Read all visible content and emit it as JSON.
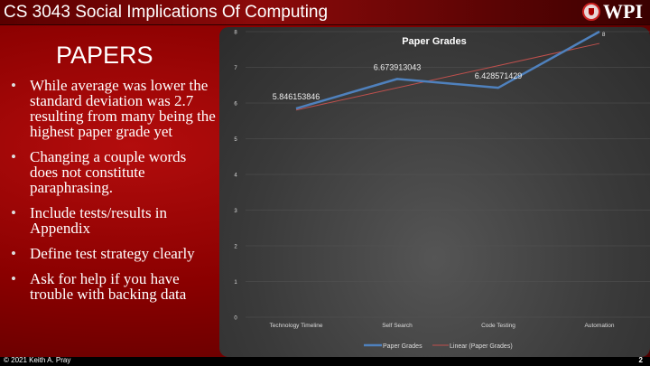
{
  "header": {
    "title": "CS 3043 Social Implications Of Computing",
    "logo_text": "WPI"
  },
  "slide": {
    "heading": "PAPERS",
    "bullets": [
      "While average was lower the standard deviation was 2.7 resulting from many being the highest paper grade yet",
      "Changing a couple words does not constitute paraphrasing.",
      "Include tests/results in Appendix",
      "Define test strategy clearly",
      "Ask for help if you have trouble with backing data"
    ]
  },
  "footer": {
    "copyright": "© 2021 Keith A. Pray",
    "page": "2"
  },
  "chart_data": {
    "type": "line",
    "title": "Paper Grades",
    "categories": [
      "Technology Timeline",
      "Self Search",
      "Code Testing",
      "Automation"
    ],
    "series": [
      {
        "name": "Paper Grades",
        "values": [
          5.846153846,
          6.673913043,
          6.428571429,
          8
        ],
        "color": "#4f81bd",
        "data_labels": [
          "5.846153846",
          "6.673913043",
          "6.428571429",
          "8"
        ]
      }
    ],
    "trendline": {
      "name": "Linear (Paper Grades)",
      "type": "linear",
      "color": "#c0504d"
    },
    "ylim": [
      0,
      8
    ],
    "yticks": [
      "0",
      "1",
      "2",
      "3",
      "4",
      "5",
      "6",
      "7",
      "8"
    ],
    "grid": true,
    "legend": "bottom"
  }
}
